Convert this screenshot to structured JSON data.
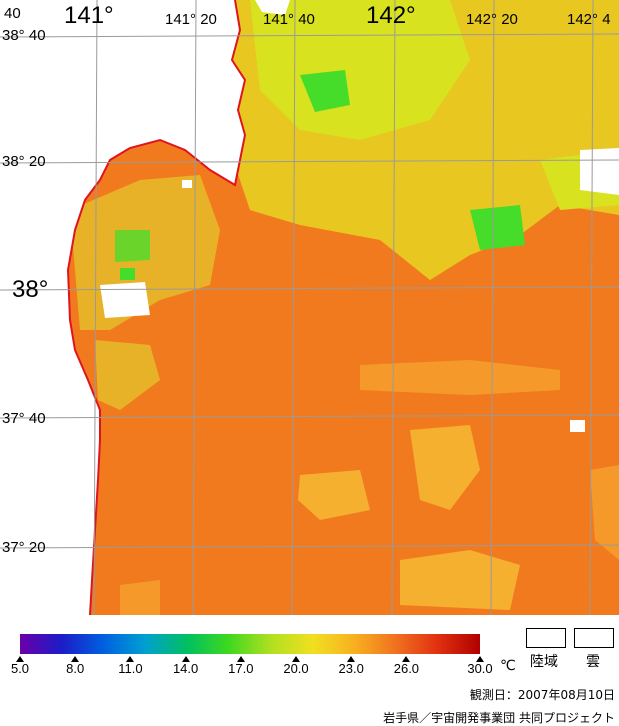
{
  "map": {
    "longitude_labels": [
      {
        "text": "40",
        "size": "small"
      },
      {
        "text": "141°",
        "size": "big"
      },
      {
        "text": "141° 20",
        "size": "small"
      },
      {
        "text": "141° 40",
        "size": "small"
      },
      {
        "text": "142°",
        "size": "big"
      },
      {
        "text": "142° 20",
        "size": "small"
      },
      {
        "text": "142° 4",
        "size": "small"
      }
    ],
    "latitude_labels": [
      {
        "text": "38° 40",
        "size": "small"
      },
      {
        "text": "38° 20",
        "size": "small"
      },
      {
        "text": "38°",
        "size": "big"
      },
      {
        "text": "37° 40",
        "size": "small"
      },
      {
        "text": "37° 20",
        "size": "small"
      }
    ],
    "colors": {
      "coast": "#e0141e",
      "grid": "#9a9a9a",
      "land": "#ffffff",
      "sea_warm": "#f27a1e",
      "sea_mid": "#f59a2a",
      "sea_cool": "#d8e21e",
      "sea_green": "#46dc2a"
    }
  },
  "colorbar": {
    "min": 5.0,
    "max": 30.0,
    "tick_labels": [
      "5.0",
      "8.0",
      "11.0",
      "14.0",
      "17.0",
      "20.0",
      "23.0",
      "26.0",
      "30.0"
    ],
    "tick_values": [
      5,
      8,
      11,
      14,
      17,
      20,
      23,
      26,
      30
    ],
    "unit": "℃",
    "gradient_colors": [
      "#6a00a8",
      "#1c1cc8",
      "#0060e0",
      "#00a0d0",
      "#00c060",
      "#40d820",
      "#b0e020",
      "#f0e020",
      "#f8b020",
      "#f07020",
      "#e03010",
      "#b00000"
    ]
  },
  "legend": {
    "land_label": "陸域",
    "cloud_label": "雲"
  },
  "footer": {
    "observation_date": "観測日：2007年08月10日",
    "credit": "岩手県／宇宙開発事業団 共同プロジェクト"
  }
}
